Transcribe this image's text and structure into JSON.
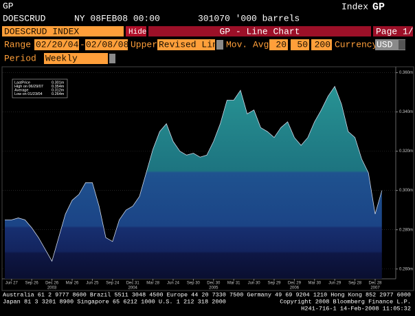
{
  "header": {
    "function": "GP",
    "index_label": "Index",
    "index_code": "GP"
  },
  "info": {
    "ticker": "DOESCRUD",
    "timestamp": "NY 08FEB08 00:00",
    "last": "301070 '000 barrels"
  },
  "toolbar": {
    "security": "DOESCRUD INDEX",
    "hide": "Hide",
    "title": "GP - Line Chart",
    "page": "Page 1/"
  },
  "settings": {
    "range_label": "Range",
    "start": "02/20/04",
    "dash": "-",
    "end": "02/08/08",
    "upper_label": "Upper",
    "upper": "Revised Line",
    "mov_avg_label": "Mov. Avg",
    "mov_avg": [
      20,
      50,
      200
    ],
    "currency_label": "Currency",
    "currency": "USD",
    "period_label": "Period",
    "period": "Weekly"
  },
  "stats": [
    {
      "label": "LastPrice",
      "value": "0.301m"
    },
    {
      "label": "High on 06/29/07",
      "value": "0.354m"
    },
    {
      "label": "Average",
      "value": "0.312m"
    },
    {
      "label": "Low on 01/23/04",
      "value": "0.264m"
    }
  ],
  "chart_data": {
    "type": "area",
    "color": "#cfd8e8",
    "categories": [
      null,
      "Jun 27",
      null,
      null,
      "Sep 26",
      null,
      null,
      "Dec 26",
      null,
      null,
      "Mar 26",
      null,
      null,
      "Jun 25",
      null,
      null,
      "Sep 24",
      null,
      null,
      "Dec 31",
      null,
      null,
      "Mar 28",
      null,
      null,
      "Jun 24",
      null,
      null,
      "Sep 30",
      null,
      null,
      "Dec 30",
      null,
      null,
      "Mar 31",
      null,
      null,
      "Jun 30",
      null,
      null,
      "Sep 29",
      null,
      null,
      "Dec 29",
      null,
      null,
      "Mar 30",
      null,
      null,
      "Jun 29",
      null,
      null,
      "Sep 28",
      null,
      null,
      "Dec 28",
      null
    ],
    "years": [
      null,
      null,
      null,
      null,
      null,
      null,
      null,
      "2003",
      null,
      null,
      null,
      null,
      null,
      null,
      null,
      null,
      null,
      null,
      null,
      "2004",
      null,
      null,
      null,
      null,
      null,
      null,
      null,
      null,
      null,
      null,
      null,
      "2005",
      null,
      null,
      null,
      null,
      null,
      null,
      null,
      null,
      null,
      null,
      null,
      "2006",
      null,
      null,
      null,
      null,
      null,
      null,
      null,
      null,
      null,
      null,
      null,
      "2007",
      null
    ],
    "values": [
      0.285,
      0.285,
      0.286,
      0.285,
      0.281,
      0.276,
      0.27,
      0.264,
      0.276,
      0.288,
      0.295,
      0.298,
      0.304,
      0.304,
      0.292,
      0.276,
      0.274,
      0.285,
      0.29,
      0.292,
      0.297,
      0.309,
      0.321,
      0.33,
      0.334,
      0.325,
      0.32,
      0.318,
      0.319,
      0.317,
      0.318,
      0.325,
      0.334,
      0.346,
      0.346,
      0.351,
      0.339,
      0.341,
      0.332,
      0.33,
      0.327,
      0.332,
      0.335,
      0.327,
      0.323,
      0.327,
      0.335,
      0.341,
      0.348,
      0.353,
      0.344,
      0.33,
      0.327,
      0.316,
      0.309,
      0.288,
      0.3
    ],
    "ylim": [
      0.255,
      0.363
    ],
    "yticks": [
      {
        "value": 0.26,
        "label": "0.260m"
      },
      {
        "value": 0.28,
        "label": "0.280m"
      },
      {
        "value": 0.3,
        "label": "0.300m"
      },
      {
        "value": 0.32,
        "label": "0.320m"
      },
      {
        "value": 0.34,
        "label": "0.340m"
      },
      {
        "value": 0.36,
        "label": "0.360m"
      }
    ],
    "grid": true
  },
  "footer": [
    "Australia 61 2 9777 8600 Brazil 5511 3048 4500 Europe 44 20 7330 7500 Germany 49 69 9204 1210 Hong Kong 852 2977 6000",
    "Japan 81 3 3201 8900          Singapore 65 6212 1000          U.S. 1 212 318 2000",
    "Copyright 2008 Bloomberg Finance L.P.",
    "H241-716-1 14-Feb-2008 11:05:32"
  ]
}
